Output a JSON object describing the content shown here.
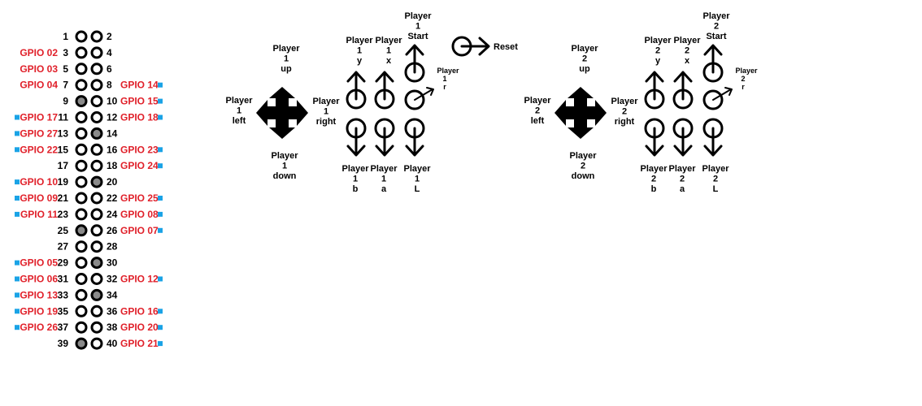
{
  "pins": [
    {
      "row": 1,
      "left_num": "1",
      "right_num": "2",
      "left_gpio": "",
      "right_gpio": "",
      "left_sq": false,
      "right_sq": false,
      "left_gray": false,
      "right_gray": false
    },
    {
      "row": 2,
      "left_num": "3",
      "right_num": "4",
      "left_gpio": "GPIO  02",
      "right_gpio": "",
      "left_sq": false,
      "right_sq": false,
      "left_gray": false,
      "right_gray": false
    },
    {
      "row": 3,
      "left_num": "5",
      "right_num": "6",
      "left_gpio": "GPIO  03",
      "right_gpio": "",
      "left_sq": false,
      "right_sq": false,
      "left_gray": false,
      "right_gray": false
    },
    {
      "row": 4,
      "left_num": "7",
      "right_num": "8",
      "left_gpio": "GPIO  04",
      "right_gpio": "GPIO 14",
      "left_sq": false,
      "right_sq": true,
      "left_gray": false,
      "right_gray": false
    },
    {
      "row": 5,
      "left_num": "9",
      "right_num": "10",
      "left_gpio": "",
      "right_gpio": "GPIO 15",
      "left_sq": false,
      "right_sq": true,
      "left_gray": true,
      "right_gray": false
    },
    {
      "row": 6,
      "left_num": "11",
      "right_num": "12",
      "left_gpio": "GPIO  17",
      "right_gpio": "GPIO 18",
      "left_sq": true,
      "right_sq": true,
      "left_gray": false,
      "right_gray": false
    },
    {
      "row": 7,
      "left_num": "13",
      "right_num": "14",
      "left_gpio": "GPIO  27",
      "right_gpio": "",
      "left_sq": true,
      "right_sq": false,
      "left_gray": false,
      "right_gray": true
    },
    {
      "row": 8,
      "left_num": "15",
      "right_num": "16",
      "left_gpio": "GPIO 22",
      "right_gpio": "GPIO 23",
      "left_sq": true,
      "right_sq": true,
      "left_gray": false,
      "right_gray": false
    },
    {
      "row": 9,
      "left_num": "17",
      "right_num": "18",
      "left_gpio": "",
      "right_gpio": "GPIO 24",
      "left_sq": false,
      "right_sq": true,
      "left_gray": false,
      "right_gray": false
    },
    {
      "row": 10,
      "left_num": "19",
      "right_num": "20",
      "left_gpio": "GPIO 10",
      "right_gpio": "",
      "left_sq": true,
      "right_sq": false,
      "left_gray": false,
      "right_gray": true
    },
    {
      "row": 11,
      "left_num": "21",
      "right_num": "22",
      "left_gpio": "GPIO 09",
      "right_gpio": "GPIO 25",
      "left_sq": true,
      "right_sq": true,
      "left_gray": false,
      "right_gray": false
    },
    {
      "row": 12,
      "left_num": "23",
      "right_num": "24",
      "left_gpio": "GPIO 11",
      "right_gpio": "GPIO 08",
      "left_sq": true,
      "right_sq": true,
      "left_gray": false,
      "right_gray": false
    },
    {
      "row": 13,
      "left_num": "25",
      "right_num": "26",
      "left_gpio": "",
      "right_gpio": "GPIO 07",
      "left_sq": false,
      "right_sq": true,
      "left_gray": true,
      "right_gray": false
    },
    {
      "row": 14,
      "left_num": "27",
      "right_num": "28",
      "left_gpio": "",
      "right_gpio": "",
      "left_sq": false,
      "right_sq": false,
      "left_gray": false,
      "right_gray": false
    },
    {
      "row": 15,
      "left_num": "29",
      "right_num": "30",
      "left_gpio": "GPIO 05",
      "right_gpio": "",
      "left_sq": true,
      "right_sq": false,
      "left_gray": false,
      "right_gray": true
    },
    {
      "row": 16,
      "left_num": "31",
      "right_num": "32",
      "left_gpio": "GPIO  06",
      "right_gpio": "GPIO 12",
      "left_sq": true,
      "right_sq": true,
      "left_gray": false,
      "right_gray": false
    },
    {
      "row": 17,
      "left_num": "33",
      "right_num": "34",
      "left_gpio": "GPIO 13",
      "right_gpio": "",
      "left_sq": true,
      "right_sq": false,
      "left_gray": false,
      "right_gray": true
    },
    {
      "row": 18,
      "left_num": "35",
      "right_num": "36",
      "left_gpio": "GPIO  19",
      "right_gpio": "GPIO 16",
      "left_sq": true,
      "right_sq": true,
      "left_gray": false,
      "right_gray": false
    },
    {
      "row": 19,
      "left_num": "37",
      "right_num": "38",
      "left_gpio": "GPIO 26",
      "right_gpio": "GPIO 20",
      "left_sq": true,
      "right_sq": true,
      "left_gray": false,
      "right_gray": false
    },
    {
      "row": 20,
      "left_num": "39",
      "right_num": "40",
      "left_gpio": "",
      "right_gpio": "GPIO 21",
      "left_sq": false,
      "right_sq": true,
      "left_gray": true,
      "right_gray": false
    }
  ],
  "colors": {
    "gpio_label": "#e0202a",
    "marker": "#1aa3e6",
    "ground_pin": "#8a8a8a",
    "ink": "#000000"
  },
  "player1": {
    "dpad": {
      "up": [
        "Player",
        "1",
        "up"
      ],
      "down": [
        "Player",
        "1",
        "down"
      ],
      "left": [
        "Player",
        "1",
        "left"
      ],
      "right": [
        "Player",
        "1",
        "right"
      ]
    },
    "y": [
      "Player",
      "1",
      "y"
    ],
    "x": [
      "Player",
      "1",
      "x"
    ],
    "start": [
      "Player",
      "1",
      "Start"
    ],
    "b": [
      "Player",
      "1",
      "b"
    ],
    "a": [
      "Player",
      "1",
      "a"
    ],
    "l": [
      "Player",
      "1",
      "L"
    ],
    "r": [
      "Player",
      "1",
      "r"
    ]
  },
  "player2": {
    "dpad": {
      "up": [
        "Player",
        "2",
        "up"
      ],
      "down": [
        "Player",
        "2",
        "down"
      ],
      "left": [
        "Player",
        "2",
        "left"
      ],
      "right": [
        "Player",
        "2",
        "right"
      ]
    },
    "y": [
      "Player",
      "2",
      "y"
    ],
    "x": [
      "Player",
      "2",
      "x"
    ],
    "start": [
      "Player",
      "2",
      "Start"
    ],
    "b": [
      "Player",
      "2",
      "b"
    ],
    "a": [
      "Player",
      "2",
      "a"
    ],
    "l": [
      "Player",
      "2",
      "L"
    ],
    "r": [
      "Player",
      "2",
      "r"
    ]
  },
  "reset_label": "Reset",
  "icons": {
    "dpad": "four-way-arrow-icon",
    "button_up": "button-up-arrow-icon",
    "button_down": "button-down-arrow-icon",
    "button_diag": "button-diagonal-arrow-icon",
    "reset": "reset-arrow-icon",
    "pin": "header-pin-icon"
  }
}
